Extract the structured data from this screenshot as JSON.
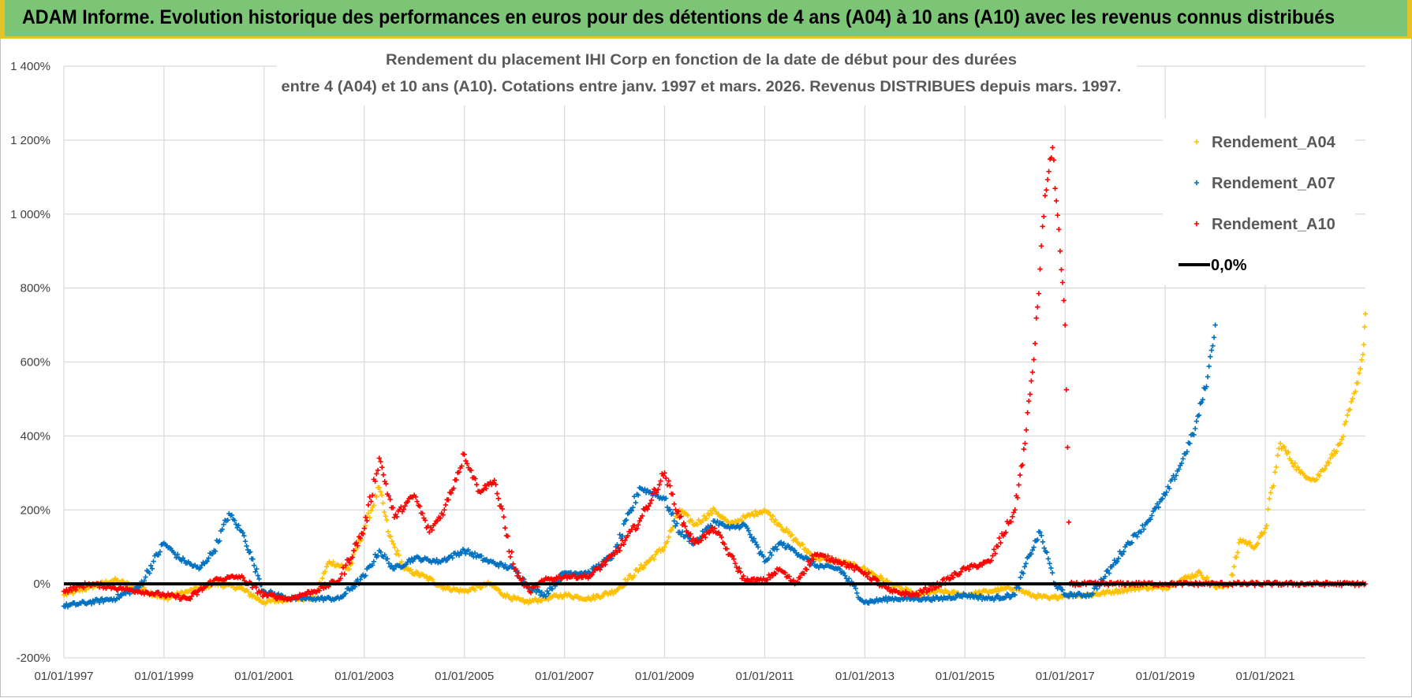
{
  "header": {
    "title": "ADAM Informe. Evolution historique des performances en euros pour des détentions de 4 ans (A04) à 10 ans (A10) avec les revenus connus distribués"
  },
  "colors": {
    "a04": "#ffc000",
    "a07": "#0070c0",
    "a10": "#ff0000",
    "zero": "#000000",
    "grid": "#d9d9d9",
    "banner": "#7dc576"
  },
  "chart_data": {
    "type": "scatter",
    "title_lines": [
      "Rendement du placement IHI Corp en fonction de la date de début pour des durées",
      "entre 4 (A04) et 10 ans (A10). Cotations entre janv. 1997 et mars. 2026. Revenus DISTRIBUES depuis mars. 1997."
    ],
    "x_ticks": [
      "01/01/1997",
      "01/01/1999",
      "01/01/2001",
      "01/01/2003",
      "01/01/2005",
      "01/01/2007",
      "01/01/2009",
      "01/01/2011",
      "01/01/2013",
      "01/01/2015",
      "01/01/2017",
      "01/01/2019",
      "01/01/2021"
    ],
    "xlim": [
      1997.0,
      2023.0
    ],
    "y_ticks": [
      "-200%",
      "0%",
      "200%",
      "400%",
      "600%",
      "800%",
      "1 000%",
      "1 200%",
      "1 400%"
    ],
    "ylim": [
      -200,
      1400
    ],
    "y_unit": "%",
    "legend_position": "top-right",
    "series": [
      {
        "name": "Rendement_A04",
        "color": "#ffc000",
        "marker": "+",
        "points": [
          [
            1997.0,
            -30
          ],
          [
            1997.5,
            -10
          ],
          [
            1998.0,
            10
          ],
          [
            1998.5,
            -10
          ],
          [
            1999.0,
            -40
          ],
          [
            1999.5,
            -20
          ],
          [
            2000.0,
            0
          ],
          [
            2000.5,
            -10
          ],
          [
            2001.0,
            -50
          ],
          [
            2001.5,
            -40
          ],
          [
            2002.0,
            -40
          ],
          [
            2002.3,
            60
          ],
          [
            2002.7,
            40
          ],
          [
            2003.0,
            150
          ],
          [
            2003.3,
            260
          ],
          [
            2003.5,
            130
          ],
          [
            2003.8,
            40
          ],
          [
            2004.2,
            20
          ],
          [
            2004.6,
            -10
          ],
          [
            2005.0,
            -20
          ],
          [
            2005.5,
            0
          ],
          [
            2005.8,
            -30
          ],
          [
            2006.2,
            -50
          ],
          [
            2006.6,
            -40
          ],
          [
            2007.0,
            -30
          ],
          [
            2007.5,
            -40
          ],
          [
            2008.0,
            -20
          ],
          [
            2008.5,
            40
          ],
          [
            2009.0,
            100
          ],
          [
            2009.3,
            200
          ],
          [
            2009.6,
            160
          ],
          [
            2010.0,
            200
          ],
          [
            2010.3,
            160
          ],
          [
            2010.6,
            180
          ],
          [
            2011.0,
            200
          ],
          [
            2011.3,
            160
          ],
          [
            2011.6,
            120
          ],
          [
            2012.0,
            70
          ],
          [
            2012.5,
            60
          ],
          [
            2013.0,
            40
          ],
          [
            2013.5,
            0
          ],
          [
            2014.0,
            -30
          ],
          [
            2014.5,
            -20
          ],
          [
            2015.0,
            -30
          ],
          [
            2015.5,
            -20
          ],
          [
            2016.0,
            -10
          ],
          [
            2016.3,
            -30
          ],
          [
            2016.7,
            -40
          ],
          [
            2017.0,
            -30
          ],
          [
            2017.5,
            -30
          ],
          [
            2018.0,
            -20
          ],
          [
            2018.5,
            -10
          ],
          [
            2019.0,
            -10
          ],
          [
            2019.3,
            10
          ],
          [
            2019.7,
            30
          ],
          [
            2020.0,
            -10
          ],
          [
            2020.3,
            0
          ],
          [
            2020.5,
            120
          ],
          [
            2020.8,
            100
          ],
          [
            2021.0,
            150
          ],
          [
            2021.3,
            380
          ],
          [
            2021.7,
            300
          ],
          [
            2022.0,
            280
          ],
          [
            2022.3,
            340
          ],
          [
            2022.5,
            380
          ],
          [
            2022.8,
            520
          ],
          [
            2022.95,
            620
          ],
          [
            2023.0,
            730
          ]
        ]
      },
      {
        "name": "Rendement_A07",
        "color": "#0070c0",
        "marker": "+",
        "points": [
          [
            1997.0,
            -60
          ],
          [
            1997.5,
            -50
          ],
          [
            1998.0,
            -40
          ],
          [
            1998.5,
            -10
          ],
          [
            1999.0,
            110
          ],
          [
            1999.3,
            70
          ],
          [
            1999.7,
            40
          ],
          [
            2000.0,
            90
          ],
          [
            2000.3,
            190
          ],
          [
            2000.6,
            130
          ],
          [
            2000.8,
            50
          ],
          [
            2001.0,
            -20
          ],
          [
            2001.5,
            -40
          ],
          [
            2002.0,
            -40
          ],
          [
            2002.5,
            -40
          ],
          [
            2003.0,
            20
          ],
          [
            2003.3,
            90
          ],
          [
            2003.6,
            40
          ],
          [
            2004.0,
            70
          ],
          [
            2004.5,
            60
          ],
          [
            2005.0,
            90
          ],
          [
            2005.5,
            60
          ],
          [
            2006.0,
            40
          ],
          [
            2006.3,
            -10
          ],
          [
            2006.6,
            -30
          ],
          [
            2007.0,
            30
          ],
          [
            2007.5,
            30
          ],
          [
            2008.0,
            80
          ],
          [
            2008.5,
            260
          ],
          [
            2009.0,
            230
          ],
          [
            2009.3,
            140
          ],
          [
            2009.6,
            110
          ],
          [
            2010.0,
            170
          ],
          [
            2010.3,
            150
          ],
          [
            2010.6,
            160
          ],
          [
            2011.0,
            60
          ],
          [
            2011.3,
            110
          ],
          [
            2011.6,
            90
          ],
          [
            2012.0,
            50
          ],
          [
            2012.5,
            40
          ],
          [
            2013.0,
            -50
          ],
          [
            2013.5,
            -40
          ],
          [
            2014.0,
            -40
          ],
          [
            2014.5,
            -40
          ],
          [
            2015.0,
            -30
          ],
          [
            2015.5,
            -40
          ],
          [
            2016.0,
            -30
          ],
          [
            2016.3,
            80
          ],
          [
            2016.5,
            140
          ],
          [
            2016.8,
            0
          ],
          [
            2017.0,
            -30
          ],
          [
            2017.5,
            -30
          ],
          [
            2017.8,
            20
          ],
          [
            2018.2,
            100
          ],
          [
            2018.6,
            160
          ],
          [
            2019.0,
            240
          ],
          [
            2019.3,
            320
          ],
          [
            2019.6,
            420
          ],
          [
            2019.85,
            560
          ],
          [
            2020.0,
            700
          ]
        ]
      },
      {
        "name": "Rendement_A10",
        "color": "#ff0000",
        "marker": "+",
        "points": [
          [
            1997.0,
            -20
          ],
          [
            1997.5,
            0
          ],
          [
            1998.0,
            -10
          ],
          [
            1998.5,
            -20
          ],
          [
            1999.0,
            -30
          ],
          [
            1999.5,
            -40
          ],
          [
            2000.0,
            10
          ],
          [
            2000.5,
            20
          ],
          [
            2001.0,
            -30
          ],
          [
            2001.5,
            -40
          ],
          [
            2002.0,
            -20
          ],
          [
            2002.5,
            10
          ],
          [
            2003.0,
            150
          ],
          [
            2003.3,
            340
          ],
          [
            2003.6,
            180
          ],
          [
            2004.0,
            240
          ],
          [
            2004.3,
            140
          ],
          [
            2004.6,
            200
          ],
          [
            2005.0,
            350
          ],
          [
            2005.3,
            250
          ],
          [
            2005.6,
            280
          ],
          [
            2006.0,
            40
          ],
          [
            2006.3,
            -20
          ],
          [
            2006.6,
            10
          ],
          [
            2007.0,
            20
          ],
          [
            2007.5,
            20
          ],
          [
            2008.0,
            80
          ],
          [
            2008.5,
            170
          ],
          [
            2009.0,
            300
          ],
          [
            2009.3,
            180
          ],
          [
            2009.6,
            110
          ],
          [
            2010.0,
            150
          ],
          [
            2010.3,
            80
          ],
          [
            2010.6,
            10
          ],
          [
            2011.0,
            10
          ],
          [
            2011.3,
            40
          ],
          [
            2011.6,
            0
          ],
          [
            2012.0,
            80
          ],
          [
            2012.5,
            60
          ],
          [
            2013.0,
            30
          ],
          [
            2013.5,
            -20
          ],
          [
            2014.0,
            -30
          ],
          [
            2014.5,
            0
          ],
          [
            2015.0,
            40
          ],
          [
            2015.5,
            60
          ],
          [
            2016.0,
            200
          ],
          [
            2016.2,
            380
          ],
          [
            2016.4,
            650
          ],
          [
            2016.6,
            1050
          ],
          [
            2016.75,
            1180
          ],
          [
            2016.9,
            900
          ],
          [
            2017.0,
            700
          ],
          [
            2017.1,
            0
          ],
          [
            2018.0,
            0
          ],
          [
            2019.0,
            0
          ],
          [
            2020.0,
            0
          ],
          [
            2021.0,
            0
          ],
          [
            2022.0,
            0
          ],
          [
            2023.0,
            0
          ]
        ]
      },
      {
        "name": "0,0%",
        "color": "#000000",
        "marker": "line",
        "points": [
          [
            1997.0,
            0
          ],
          [
            2023.0,
            0
          ]
        ]
      }
    ]
  }
}
